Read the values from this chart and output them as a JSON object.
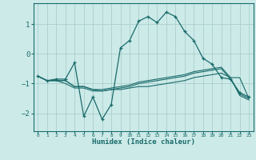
{
  "xlabel": "Humidex (Indice chaleur)",
  "x": [
    0,
    1,
    2,
    3,
    4,
    5,
    6,
    7,
    8,
    9,
    10,
    11,
    12,
    13,
    14,
    15,
    16,
    17,
    18,
    19,
    20,
    21,
    22,
    23
  ],
  "line1": [
    -0.75,
    -0.9,
    -0.85,
    -0.85,
    -0.3,
    -2.1,
    -1.45,
    -2.2,
    -1.7,
    0.2,
    0.45,
    1.1,
    1.25,
    1.05,
    1.4,
    1.25,
    0.75,
    0.45,
    -0.15,
    -0.35,
    -0.8,
    -0.85,
    -1.3,
    -1.45
  ],
  "line2": [
    -0.75,
    -0.9,
    -0.9,
    -0.9,
    -1.1,
    -1.1,
    -1.2,
    -1.2,
    -1.15,
    -1.1,
    -1.05,
    -0.95,
    -0.9,
    -0.85,
    -0.8,
    -0.75,
    -0.7,
    -0.6,
    -0.55,
    -0.5,
    -0.45,
    -0.8,
    -0.8,
    -1.5
  ],
  "line3": [
    -0.75,
    -0.9,
    -0.9,
    -1.0,
    -1.15,
    -1.15,
    -1.25,
    -1.25,
    -1.2,
    -1.2,
    -1.15,
    -1.1,
    -1.1,
    -1.05,
    -1.0,
    -0.95,
    -0.9,
    -0.8,
    -0.75,
    -0.7,
    -0.65,
    -0.8,
    -1.4,
    -1.55
  ],
  "line4": [
    -0.75,
    -0.9,
    -0.9,
    -0.9,
    -1.1,
    -1.1,
    -1.2,
    -1.25,
    -1.2,
    -1.15,
    -1.1,
    -1.0,
    -0.95,
    -0.9,
    -0.85,
    -0.8,
    -0.75,
    -0.65,
    -0.6,
    -0.55,
    -0.5,
    -0.85,
    -1.35,
    -1.5
  ],
  "bg_color": "#cceae8",
  "grid_color": "#aacfcd",
  "line_color": "#1a6b6b",
  "ylim": [
    -2.6,
    1.7
  ],
  "yticks": [
    -2,
    -1,
    0,
    1
  ],
  "xlim": [
    -0.5,
    23.5
  ]
}
